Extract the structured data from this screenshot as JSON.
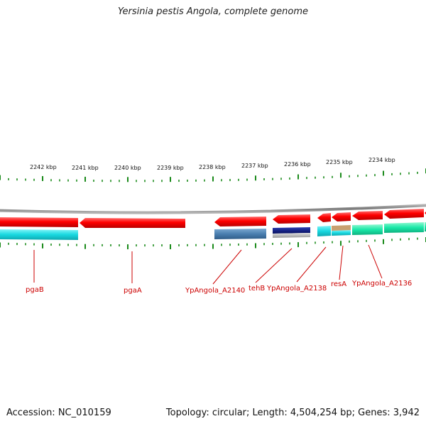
{
  "title": "Yersinia pestis Angola, complete genome",
  "footer": {
    "accession": "Accession: NC_010159",
    "summary": "Topology: circular; Length: 4,504,254 bp; Genes: 3,942"
  },
  "colors": {
    "backbone": "#8a8a8a",
    "tick": "#1a8a1a",
    "gene_red": "#ff0000",
    "label_red": "#cc0000",
    "cyan": "#18d8e0",
    "steel_blue": "#4a7fb0",
    "navy": "#0a1a88",
    "teal_green": "#18e8a8",
    "tan": "#c8a070"
  },
  "scale_labels": [
    "2242 kbp",
    "2241 kbp",
    "2240 kbp",
    "2239 kbp",
    "2238 kbp",
    "2237 kbp",
    "2236 kbp",
    "2235 kbp",
    "2234 kbp"
  ],
  "gene_labels": [
    "pgaB",
    "pgaA",
    "YpAngola_A2140",
    "tehB",
    "YpAngola_A2138",
    "resA",
    "YpAngola_A2136"
  ]
}
